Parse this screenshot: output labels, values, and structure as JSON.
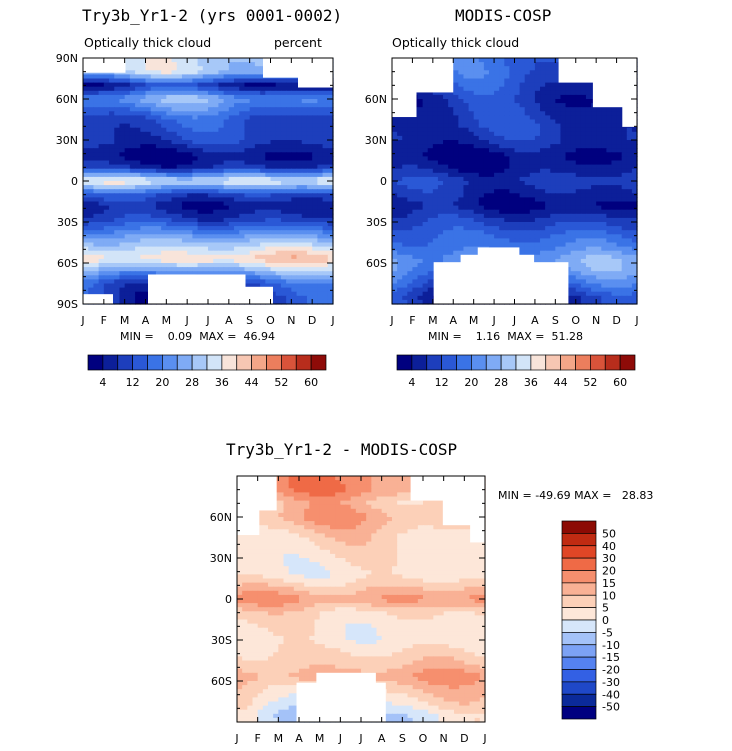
{
  "chart_data": [
    {
      "type": "heatmap",
      "title": "Try3b_Yr1-2 (yrs 0001-0002)",
      "subtitle": "Optically thick cloud",
      "units": "percent",
      "x_tick_labels": [
        "J",
        "F",
        "M",
        "A",
        "M",
        "J",
        "J",
        "A",
        "S",
        "O",
        "N",
        "D",
        "J"
      ],
      "y_tick_labels": [
        "90N",
        "60N",
        "30N",
        "0",
        "30S",
        "60S",
        "90S"
      ],
      "ylim": [
        -90,
        90
      ],
      "min_label": "MIN =",
      "min_value": "0.09",
      "max_label": "MAX =",
      "max_value": "46.94",
      "colorbar_labels": [
        "4",
        "12",
        "20",
        "28",
        "36",
        "44",
        "52",
        "60"
      ],
      "zonal_profile": [
        [
          80,
          30
        ],
        [
          70,
          6
        ],
        [
          60,
          24
        ],
        [
          45,
          12
        ],
        [
          30,
          10
        ],
        [
          18,
          3
        ],
        [
          10,
          8
        ],
        [
          0,
          36
        ],
        [
          -10,
          12
        ],
        [
          -18,
          5
        ],
        [
          -28,
          10
        ],
        [
          -40,
          24
        ],
        [
          -50,
          34
        ],
        [
          -57,
          40
        ],
        [
          -65,
          28
        ],
        [
          -75,
          12
        ],
        [
          -85,
          8
        ]
      ]
    },
    {
      "type": "heatmap",
      "title": "MODIS-COSP",
      "subtitle": "Optically thick cloud",
      "x_tick_labels": [
        "J",
        "F",
        "M",
        "A",
        "M",
        "J",
        "J",
        "A",
        "S",
        "O",
        "N",
        "D",
        "J"
      ],
      "y_tick_labels": [
        "60N",
        "30N",
        "0",
        "30S",
        "60S"
      ],
      "ylim": [
        -90,
        90
      ],
      "min_label": "MIN =",
      "min_value": "1.16",
      "max_label": "MAX =",
      "max_value": "51.28",
      "colorbar_labels": [
        "4",
        "12",
        "20",
        "28",
        "36",
        "44",
        "52",
        "60"
      ],
      "zonal_profile": [
        [
          80,
          14
        ],
        [
          60,
          7
        ],
        [
          40,
          9
        ],
        [
          30,
          8
        ],
        [
          18,
          3
        ],
        [
          8,
          6
        ],
        [
          0,
          10
        ],
        [
          -10,
          7
        ],
        [
          -18,
          4
        ],
        [
          -28,
          10
        ],
        [
          -40,
          16
        ],
        [
          -50,
          20
        ],
        [
          -57,
          24
        ],
        [
          -65,
          22
        ],
        [
          -75,
          14
        ],
        [
          -85,
          6
        ]
      ]
    },
    {
      "type": "heatmap",
      "title": "Try3b_Yr1-2 - MODIS-COSP",
      "x_tick_labels": [
        "J",
        "F",
        "M",
        "A",
        "M",
        "J",
        "J",
        "A",
        "S",
        "O",
        "N",
        "D",
        "J"
      ],
      "y_tick_labels": [
        "60N",
        "30N",
        "0",
        "30S",
        "60S"
      ],
      "ylim": [
        -90,
        90
      ],
      "min_label": "MIN =",
      "min_value": "-49.69",
      "max_label": "MAX =",
      "max_value": "28.83",
      "colorbar_labels": [
        "50",
        "40",
        "30",
        "20",
        "15",
        "10",
        "5",
        "0",
        "-5",
        "-10",
        "-15",
        "-20",
        "-30",
        "-40",
        "-50"
      ],
      "zonal_profile": [
        [
          80,
          16
        ],
        [
          70,
          8
        ],
        [
          60,
          12
        ],
        [
          45,
          5
        ],
        [
          30,
          3
        ],
        [
          18,
          2
        ],
        [
          10,
          8
        ],
        [
          0,
          16
        ],
        [
          -10,
          6
        ],
        [
          -20,
          3
        ],
        [
          -30,
          2
        ],
        [
          -40,
          6
        ],
        [
          -50,
          10
        ],
        [
          -57,
          14
        ],
        [
          -65,
          8
        ],
        [
          -75,
          3
        ],
        [
          -85,
          -4
        ]
      ]
    }
  ],
  "colorscales": {
    "abs": [
      "#00007f",
      "#0c1f99",
      "#1d3ebc",
      "#2a58d6",
      "#3a73e6",
      "#5a8ff0",
      "#7fabf5",
      "#a7c8f8",
      "#d2e4f8",
      "#f8e4da",
      "#f7c7b3",
      "#f4a688",
      "#ec7e5d",
      "#d9533a",
      "#b82d1c",
      "#8e0b08"
    ],
    "diff": [
      "#000080",
      "#0b2a9a",
      "#1f48c8",
      "#3360e4",
      "#5582f0",
      "#7ca2f5",
      "#a4c2f8",
      "#d6e6fa",
      "#fde7d9",
      "#fcd0b8",
      "#f9b195",
      "#f68f6e",
      "#ef6a46",
      "#e04626",
      "#c02b12",
      "#8c0b04"
    ]
  }
}
